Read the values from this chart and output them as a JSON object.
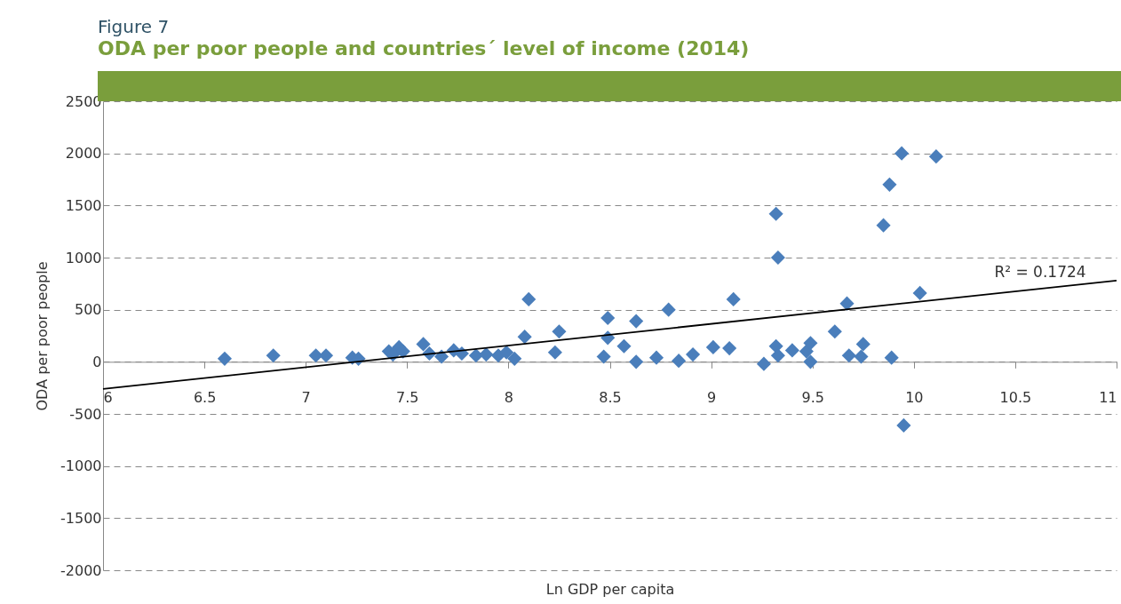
{
  "chart_data": {
    "type": "scatter",
    "title": "Figure 7",
    "subtitle": "ODA per poor people and countries´ level of income (2014)",
    "xlabel": "Ln GDP per capita",
    "ylabel": "ODA per poor people",
    "xlim": [
      6,
      11
    ],
    "xticks": [
      6,
      6.5,
      7,
      7.5,
      8,
      8.5,
      9,
      9.5,
      10,
      10.5,
      11
    ],
    "ylim": [
      -2000,
      2500
    ],
    "yticks": [
      -2000,
      -1500,
      -1000,
      -500,
      0,
      500,
      1000,
      1500,
      2000,
      2500
    ],
    "grid": "y",
    "series": [
      {
        "color": "#4a7ebb",
        "marker": "diamond",
        "x": [
          6.6,
          6.84,
          7.05,
          7.1,
          7.23,
          7.26,
          7.41,
          7.46,
          7.43,
          7.48,
          7.58,
          7.61,
          7.67,
          7.73,
          7.77,
          7.84,
          7.89,
          7.95,
          7.99,
          8.03,
          8.08,
          8.1,
          8.23,
          8.25,
          8.47,
          8.49,
          8.49,
          8.57,
          8.63,
          8.63,
          8.79,
          8.73,
          8.84,
          8.91,
          9.01,
          9.09,
          9.11,
          9.26,
          9.32,
          9.33,
          9.32,
          9.33,
          9.4,
          9.47,
          9.49,
          9.49,
          9.61,
          9.67,
          9.68,
          9.75,
          9.74,
          9.89,
          9.85,
          9.88,
          9.94,
          10.11,
          10.03,
          9.95
        ],
        "values": [
          30,
          60,
          60,
          60,
          40,
          30,
          100,
          140,
          70,
          100,
          170,
          80,
          50,
          110,
          80,
          60,
          70,
          60,
          90,
          30,
          240,
          600,
          90,
          290,
          50,
          230,
          420,
          150,
          390,
          0,
          500,
          40,
          10,
          70,
          140,
          130,
          600,
          -20,
          150,
          60,
          1420,
          1000,
          110,
          100,
          180,
          0,
          290,
          560,
          60,
          170,
          50,
          40,
          1310,
          1700,
          2000,
          1970,
          660,
          -610
        ]
      },
      {
        "type": "line",
        "color": "#000000",
        "x": [
          6,
          11
        ],
        "values": [
          -260,
          780
        ]
      }
    ],
    "annotations": [
      "R² = 0.1724"
    ]
  }
}
